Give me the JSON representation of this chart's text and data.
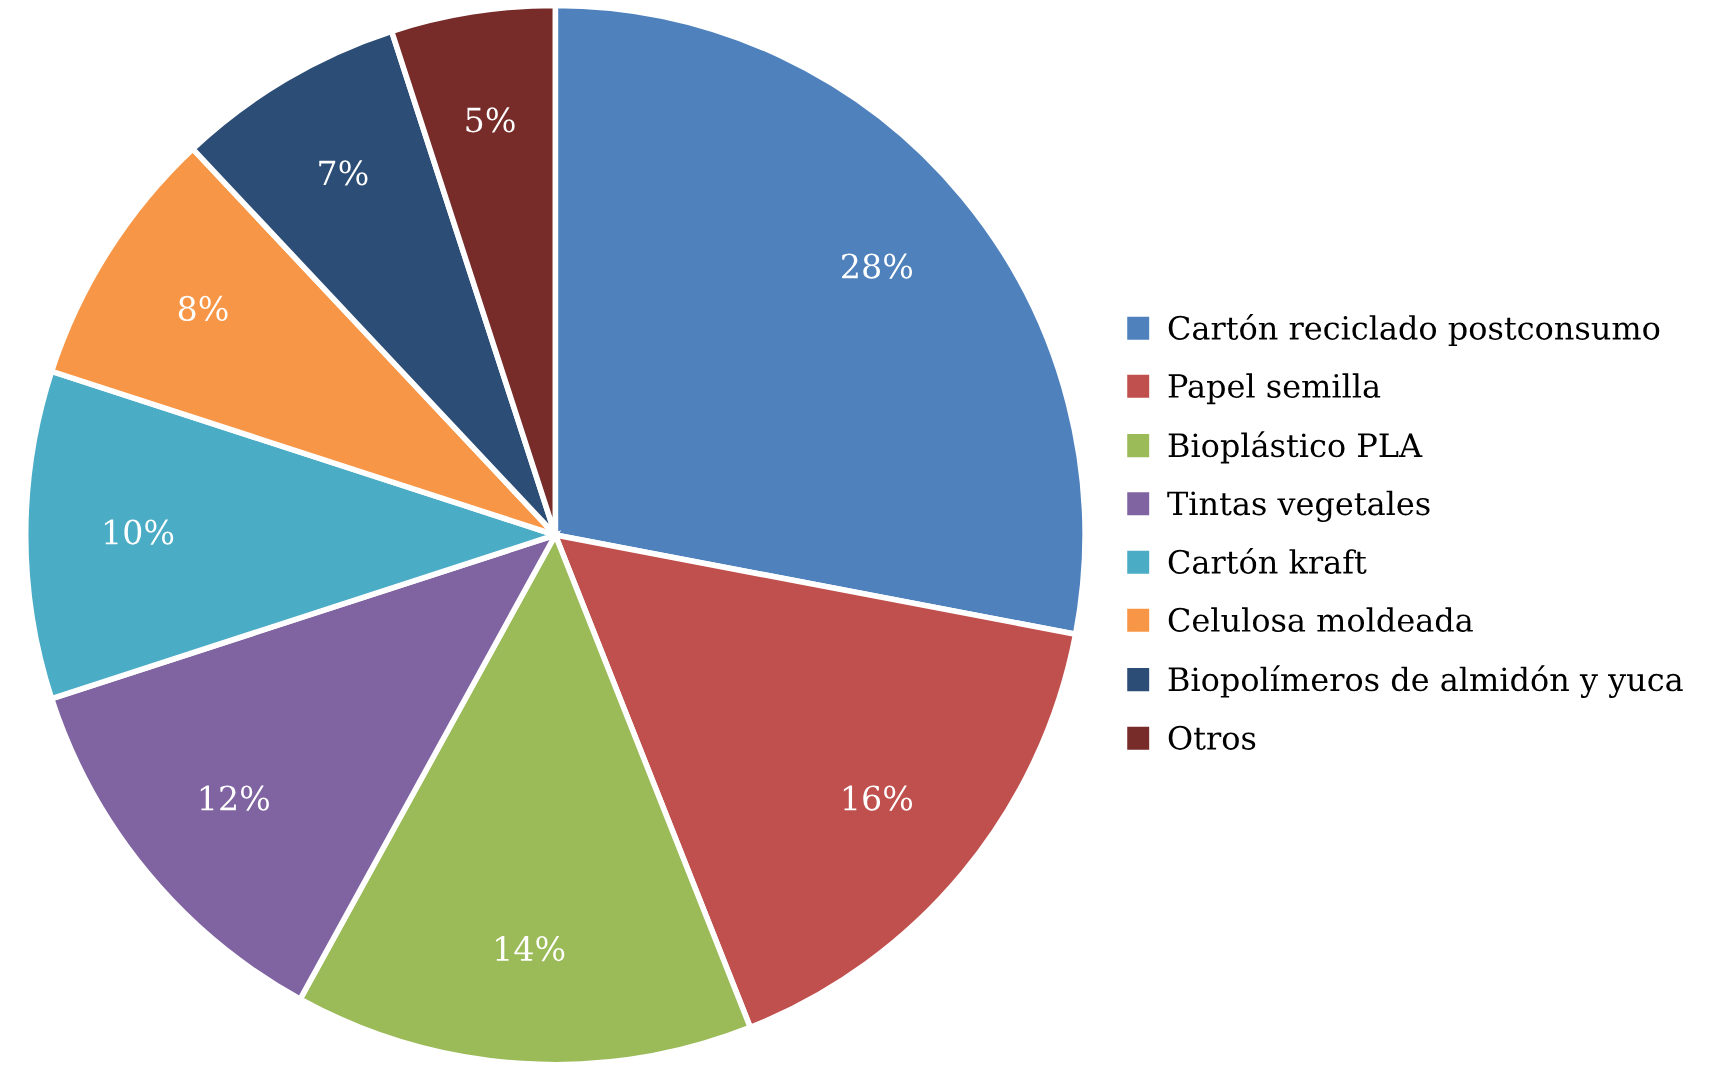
{
  "chart_data": {
    "type": "pie",
    "categories": [
      "Cartón reciclado postconsumo",
      "Papel semilla",
      "Bioplástico PLA",
      "Tintas vegetales",
      "Cartón kraft",
      "Celulosa moldeada",
      "Biopolímeros de almidón y yuca",
      "Otros"
    ],
    "values": [
      28,
      16,
      14,
      12,
      10,
      8,
      7,
      5
    ],
    "colors": [
      "#4f81bd",
      "#c0504d",
      "#9bbb59",
      "#8064a2",
      "#4bacc6",
      "#f79646",
      "#2c4d75",
      "#772c2a"
    ],
    "value_labels": [
      "28%",
      "16%",
      "14%",
      "12%",
      "10%",
      "8%",
      "7%",
      "5%"
    ],
    "legend": "right"
  }
}
